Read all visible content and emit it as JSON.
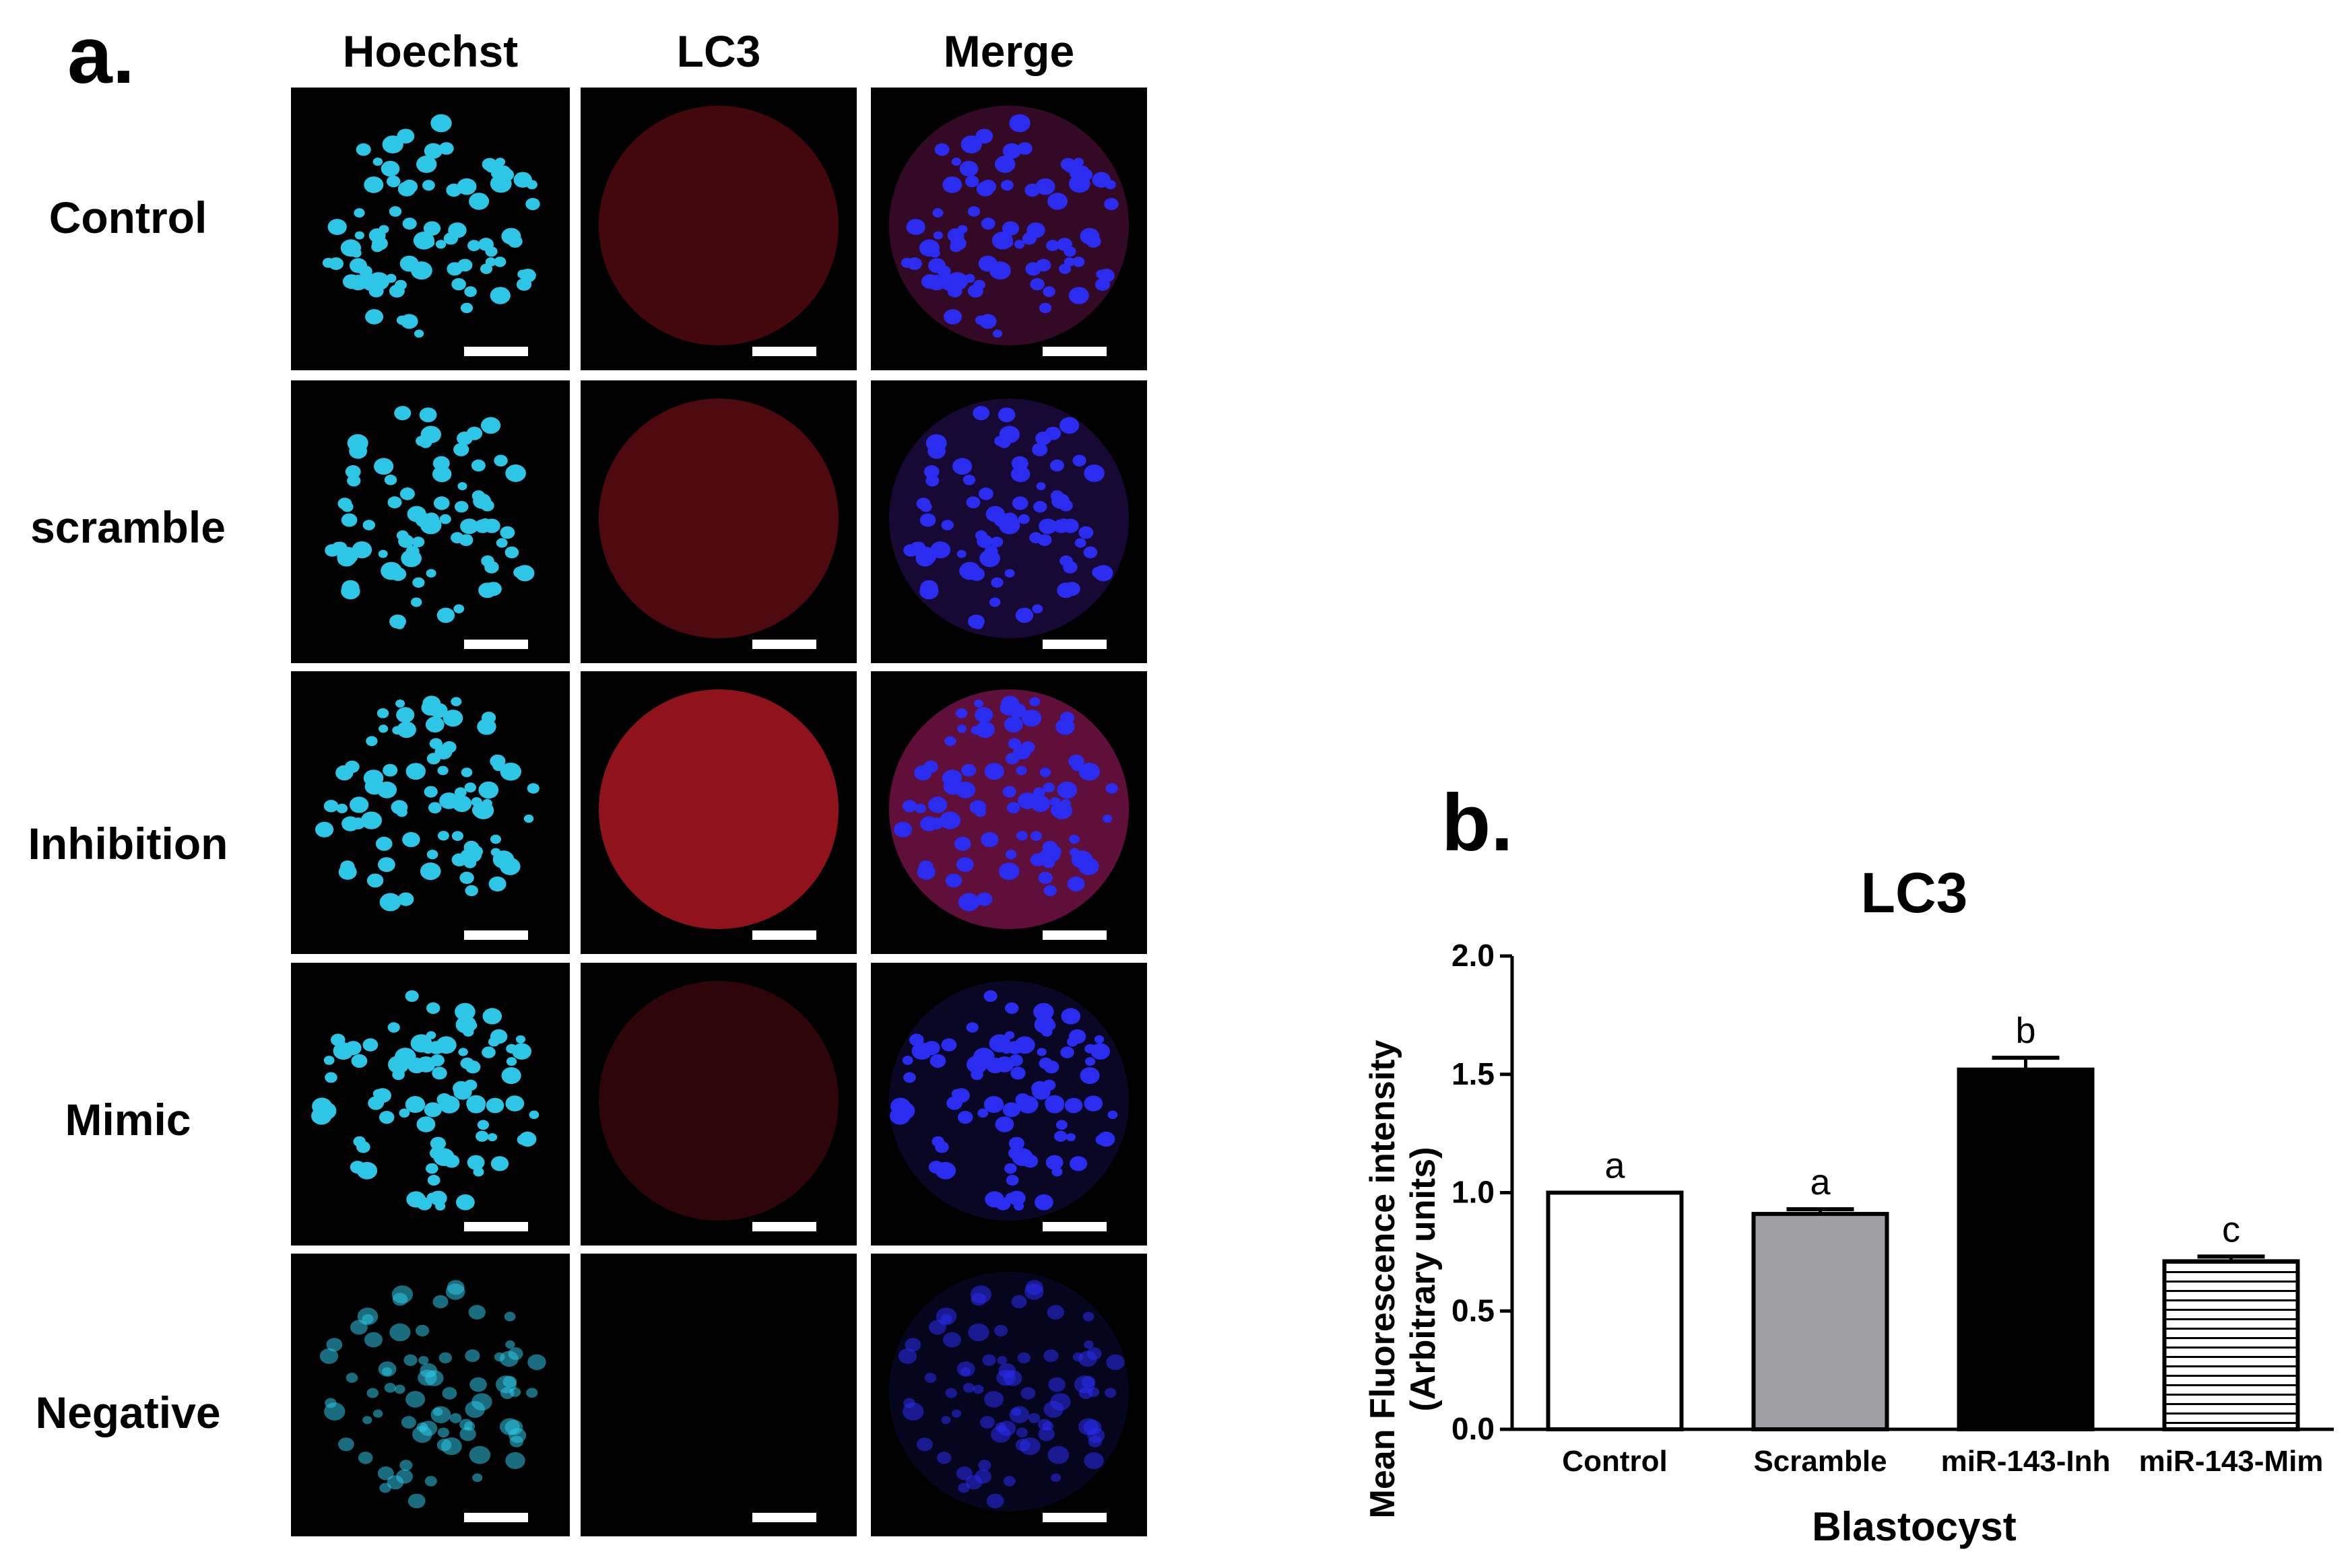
{
  "panel_a": {
    "label": "a.",
    "columns": [
      "Hoechst",
      "LC3",
      "Merge"
    ],
    "rows": [
      "Control",
      "scramble",
      "Inhibition",
      "Mimic",
      "Negative"
    ]
  },
  "panel_b": {
    "label": "b."
  },
  "colors": {
    "hoechst": "#2ec6e6",
    "lc3": "#b0121c",
    "merge_nuclei": "#2a2cf0"
  },
  "chart_data": {
    "type": "bar",
    "title": "LC3",
    "xlabel": "Blastocyst",
    "ylabel": "Mean Fluorescence intensity (Arbitrary units)",
    "ylabel_lines": [
      "Mean Fluorescence intensity",
      "(Arbitrary units)"
    ],
    "categories": [
      "Control",
      "Scramble",
      "miR-143-Inh",
      "miR-143-Mim"
    ],
    "values": [
      1.0,
      0.91,
      1.52,
      0.71
    ],
    "errors": [
      0.0,
      0.02,
      0.05,
      0.02
    ],
    "significance": [
      "a",
      "a",
      "b",
      "c"
    ],
    "fills": [
      "white",
      "gray",
      "black",
      "horizontal-stripes"
    ],
    "ylim": [
      0.0,
      2.0
    ],
    "yticks": [
      "0.0",
      "0.5",
      "1.0",
      "1.5",
      "2.0"
    ],
    "grid": false
  }
}
